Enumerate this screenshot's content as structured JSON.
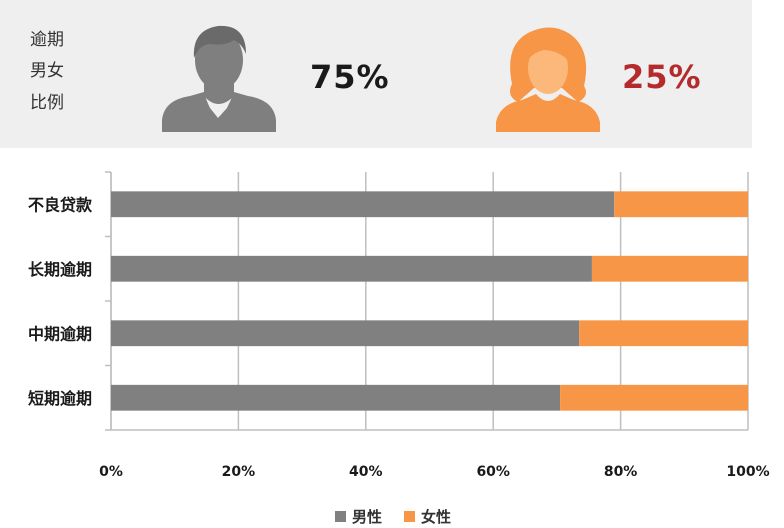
{
  "header": {
    "label_lines": [
      "逾期",
      "男女",
      "比例"
    ],
    "male_percent": "75%",
    "female_percent": "25%"
  },
  "colors": {
    "male": "#808080",
    "female": "#f79646",
    "male_icon": "#7f7f7f",
    "female_icon": "#f79646",
    "female_percent_text": "#b52a2a",
    "grid": "#bfbfbf"
  },
  "chart_data": {
    "type": "bar",
    "orientation": "horizontal",
    "stacked": true,
    "percent_stacked": true,
    "categories": [
      "不良贷款",
      "长期逾期",
      "中期逾期",
      "短期逾期"
    ],
    "series": [
      {
        "name": "男性",
        "values": [
          79,
          75.5,
          73.5,
          70.5
        ]
      },
      {
        "name": "女性",
        "values": [
          21,
          24.5,
          26.5,
          29.5
        ]
      }
    ],
    "xlim": [
      0,
      100
    ],
    "xticks": [
      "0%",
      "20%",
      "40%",
      "60%",
      "80%",
      "100%"
    ],
    "grid": true,
    "legend_position": "bottom"
  }
}
